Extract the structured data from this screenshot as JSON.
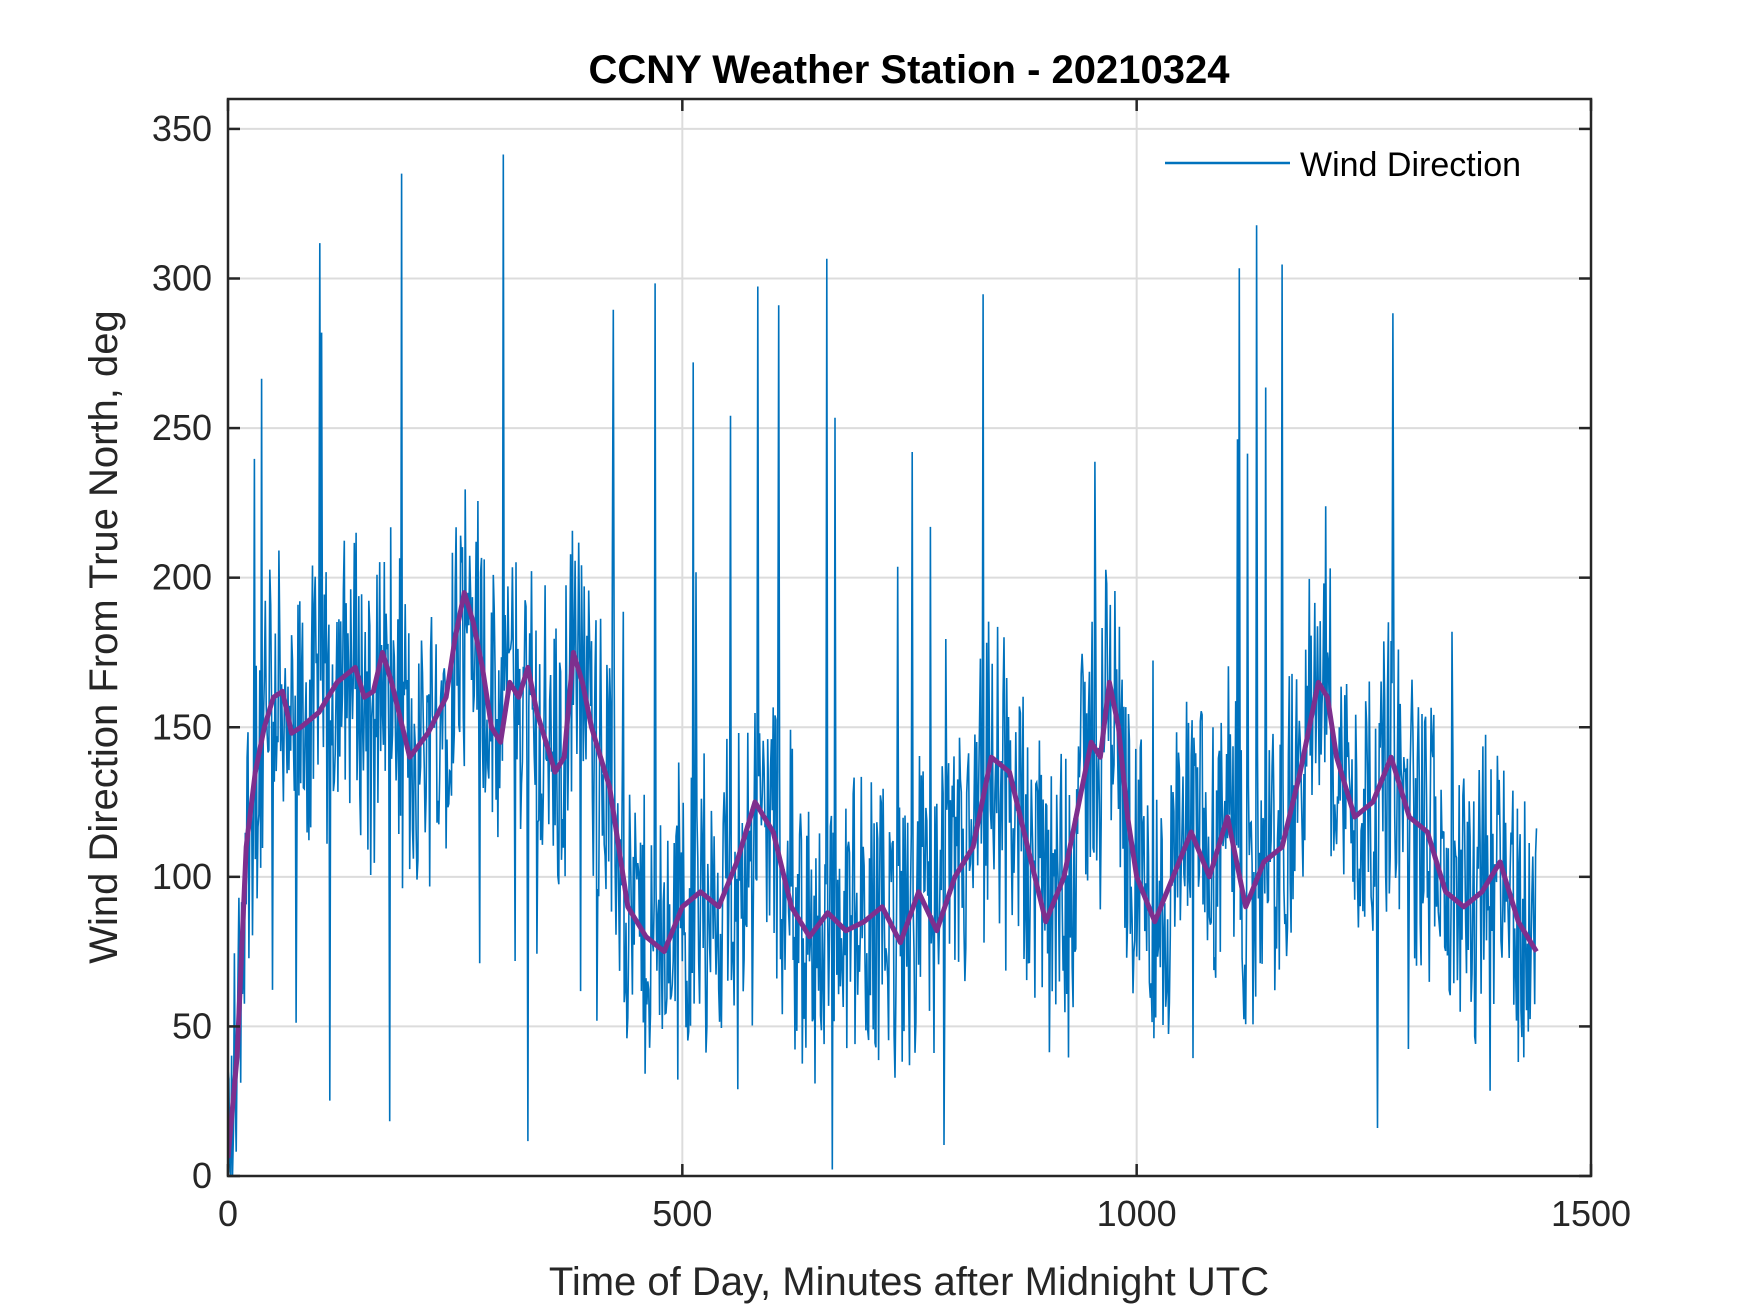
{
  "chart_data": {
    "type": "line",
    "title": "CCNY Weather Station - 20210324",
    "xlabel": "Time of Day, Minutes after Midnight UTC",
    "ylabel": "Wind Direction From True North, deg",
    "xlim": [
      0,
      1500
    ],
    "ylim": [
      0,
      360
    ],
    "xticks": [
      0,
      500,
      1000,
      1500
    ],
    "xtick_labels": [
      "0",
      "500",
      "1000",
      "1500"
    ],
    "yticks": [
      0,
      50,
      100,
      150,
      200,
      250,
      300,
      350
    ],
    "ytick_labels": [
      "0",
      "50",
      "100",
      "150",
      "200",
      "250",
      "300",
      "350"
    ],
    "grid": true,
    "legend": {
      "placement": "top-right",
      "entries": [
        "Wind Direction"
      ]
    },
    "series": [
      {
        "name": "Wind Direction",
        "color": "#0072bd",
        "style": "raw-noisy",
        "x_range": [
          0,
          1440
        ],
        "spread": 35,
        "spike_max": 350,
        "note_envelope": "follows smoothed series"
      },
      {
        "color": "#7e2f8e",
        "style": "smoothed",
        "x": [
          0,
          10,
          20,
          30,
          40,
          50,
          60,
          70,
          80,
          100,
          120,
          140,
          150,
          160,
          170,
          180,
          200,
          220,
          240,
          250,
          260,
          270,
          280,
          290,
          300,
          310,
          320,
          330,
          340,
          350,
          360,
          370,
          380,
          390,
          400,
          420,
          440,
          460,
          480,
          500,
          520,
          540,
          560,
          580,
          600,
          620,
          640,
          660,
          680,
          700,
          720,
          740,
          760,
          780,
          800,
          820,
          840,
          860,
          880,
          900,
          920,
          940,
          950,
          960,
          970,
          980,
          990,
          1000,
          1020,
          1040,
          1060,
          1080,
          1100,
          1120,
          1140,
          1160,
          1180,
          1200,
          1210,
          1220,
          1240,
          1260,
          1280,
          1300,
          1320,
          1340,
          1360,
          1380,
          1400,
          1420,
          1440
        ],
        "y": [
          6,
          40,
          110,
          135,
          150,
          160,
          162,
          148,
          150,
          155,
          165,
          170,
          160,
          162,
          175,
          165,
          140,
          148,
          160,
          180,
          195,
          185,
          170,
          150,
          145,
          165,
          160,
          170,
          155,
          145,
          135,
          140,
          175,
          165,
          150,
          130,
          90,
          80,
          75,
          90,
          95,
          90,
          105,
          125,
          115,
          90,
          80,
          88,
          82,
          85,
          90,
          78,
          95,
          82,
          100,
          110,
          140,
          135,
          110,
          85,
          100,
          130,
          145,
          140,
          165,
          150,
          120,
          100,
          85,
          100,
          115,
          100,
          120,
          90,
          105,
          110,
          135,
          165,
          160,
          140,
          120,
          125,
          140,
          120,
          115,
          95,
          90,
          95,
          105,
          85,
          75
        ]
      }
    ]
  }
}
